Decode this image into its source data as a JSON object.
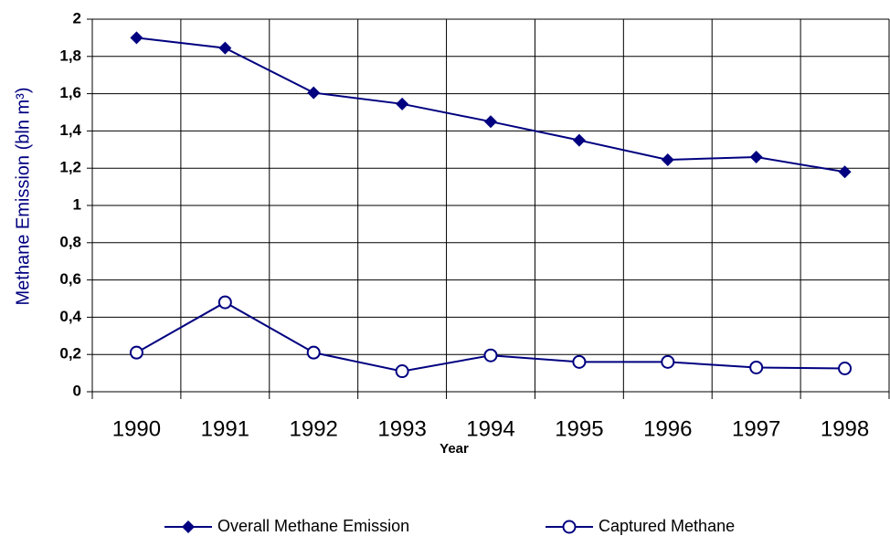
{
  "chart_data": {
    "type": "line",
    "ylabel": "Methane Emission (bln m³)",
    "xlabel": "Year",
    "categories": [
      "1990",
      "1991",
      "1992",
      "1993",
      "1994",
      "1995",
      "1996",
      "1997",
      "1998"
    ],
    "series": [
      {
        "name": "Overall Methane Emission",
        "color": "#000080",
        "marker": "diamond",
        "values": [
          1.9,
          1.845,
          1.605,
          1.545,
          1.45,
          1.35,
          1.245,
          1.26,
          1.18
        ]
      },
      {
        "name": "Captured Methane",
        "color": "#000080",
        "marker": "circle",
        "values": [
          0.21,
          0.48,
          0.21,
          0.11,
          0.195,
          0.16,
          0.16,
          0.13,
          0.125
        ]
      }
    ],
    "ylim": [
      0,
      2
    ],
    "yticks": [
      0,
      {
        "value": 0.2,
        "label": "0,2"
      },
      {
        "value": 0.4,
        "label": "0,4"
      },
      {
        "value": 0.6,
        "label": "0,6"
      },
      {
        "value": 0.8,
        "label": "0,8"
      },
      1,
      {
        "value": 1.2,
        "label": "1,2"
      },
      {
        "value": 1.4,
        "label": "1,4"
      },
      {
        "value": 1.6,
        "label": "1,6"
      },
      {
        "value": 1.8,
        "label": "1,8"
      },
      2
    ],
    "grid": true,
    "legend": "bottom"
  }
}
